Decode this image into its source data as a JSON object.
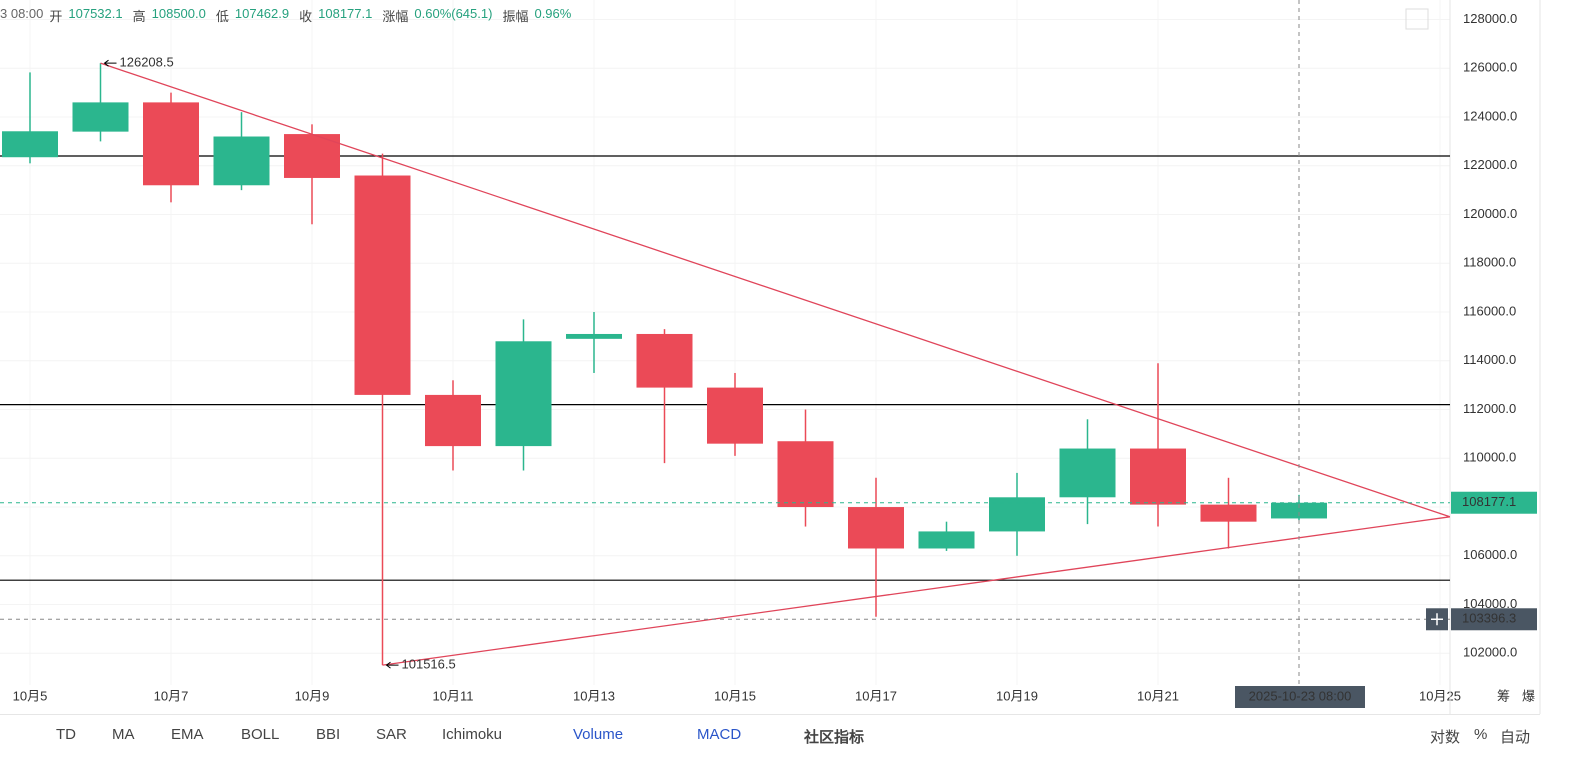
{
  "header": {
    "date": "3 08:00",
    "items": [
      {
        "label": "开",
        "value": "107532.1"
      },
      {
        "label": "高",
        "value": "108500.0"
      },
      {
        "label": "低",
        "value": "107462.9"
      },
      {
        "label": "收",
        "value": "108177.1"
      },
      {
        "label": "涨幅",
        "value": "0.60%(645.1)"
      },
      {
        "label": "振幅",
        "value": "0.96%"
      }
    ]
  },
  "chart_data": {
    "type": "candlestick",
    "categories": [
      "10月5",
      null,
      "10月7",
      null,
      "10月9",
      null,
      "10月11",
      null,
      "10月13",
      null,
      "10月15",
      null,
      "10月17",
      null,
      "10月19",
      null,
      "10月21",
      null,
      null,
      null,
      "10月25"
    ],
    "open": [
      122350,
      123400,
      124600,
      121200,
      123300,
      121600,
      112600,
      110500,
      114900,
      115100,
      112900,
      110700,
      108000,
      106300,
      107000,
      108400,
      110400,
      108100,
      107532.1,
      null,
      null
    ],
    "high": [
      125830,
      126208.5,
      125000,
      124200,
      123700,
      122500,
      113200,
      115700,
      116000,
      115300,
      113500,
      112000,
      109200,
      107400,
      109400,
      111600,
      113900,
      109200,
      108500.0,
      null,
      null
    ],
    "low": [
      122100,
      123000,
      120500,
      121000,
      119600,
      101516.5,
      109500,
      109500,
      113500,
      109800,
      110100,
      107200,
      103500,
      106200,
      106000,
      107300,
      107200,
      106300,
      107462.9,
      null,
      null
    ],
    "close": [
      123415,
      124600,
      121200,
      123200,
      121500,
      112600,
      110500,
      114800,
      115100,
      112900,
      110600,
      108000,
      106300,
      107000,
      108400,
      110400,
      108100,
      107400,
      108177.1,
      null,
      null
    ],
    "up_color": "#2bb68e",
    "down_color": "#eb4a57",
    "ylim": [
      100700,
      128800
    ],
    "yticks": [
      {
        "value": 102000,
        "label": "102000.0"
      },
      {
        "value": 104000,
        "label": "104000.0"
      },
      {
        "value": 106000,
        "label": "106000.0"
      },
      {
        "value": 108000,
        "label": "108000.0"
      },
      {
        "value": 110000,
        "label": "110000.0"
      },
      {
        "value": 112000,
        "label": "112000.0"
      },
      {
        "value": 114000,
        "label": "114000.0"
      },
      {
        "value": 116000,
        "label": "116000.0"
      },
      {
        "value": 118000,
        "label": "118000.0"
      },
      {
        "value": 120000,
        "label": "120000.0"
      },
      {
        "value": 122000,
        "label": "122000.0"
      },
      {
        "value": 124000,
        "label": "124000.0"
      },
      {
        "value": 126000,
        "label": "126000.0"
      },
      {
        "value": 128000,
        "label": "128000.0"
      }
    ],
    "grid": true,
    "hlines": [
      122400,
      112200,
      105000
    ],
    "trendlines": [
      {
        "color": "#e0455a",
        "points": [
          [
            1,
            126208.5
          ],
          [
            20.14,
            107600
          ]
        ]
      },
      {
        "color": "#e0455a",
        "points": [
          [
            5,
            101516.5
          ],
          [
            20.14,
            107600
          ]
        ]
      }
    ],
    "annotations": [
      {
        "index": 1,
        "value": 126208.5
      },
      {
        "index": 5,
        "value": 101516.5
      }
    ],
    "last_price": 108177.1,
    "crosshair": {
      "index": 18,
      "price": 103396.3,
      "label": "2025-10-23 08:00"
    }
  },
  "corner": [
    "筹",
    "爆"
  ],
  "toolbar": {
    "indicators": [
      "TD",
      "MA",
      "EMA",
      "BOLL",
      "BBI",
      "SAR",
      "Ichimoku"
    ],
    "sub": [
      "Volume",
      "MACD"
    ],
    "community": "社区指标",
    "right": [
      "对数",
      "%",
      "自动"
    ]
  }
}
